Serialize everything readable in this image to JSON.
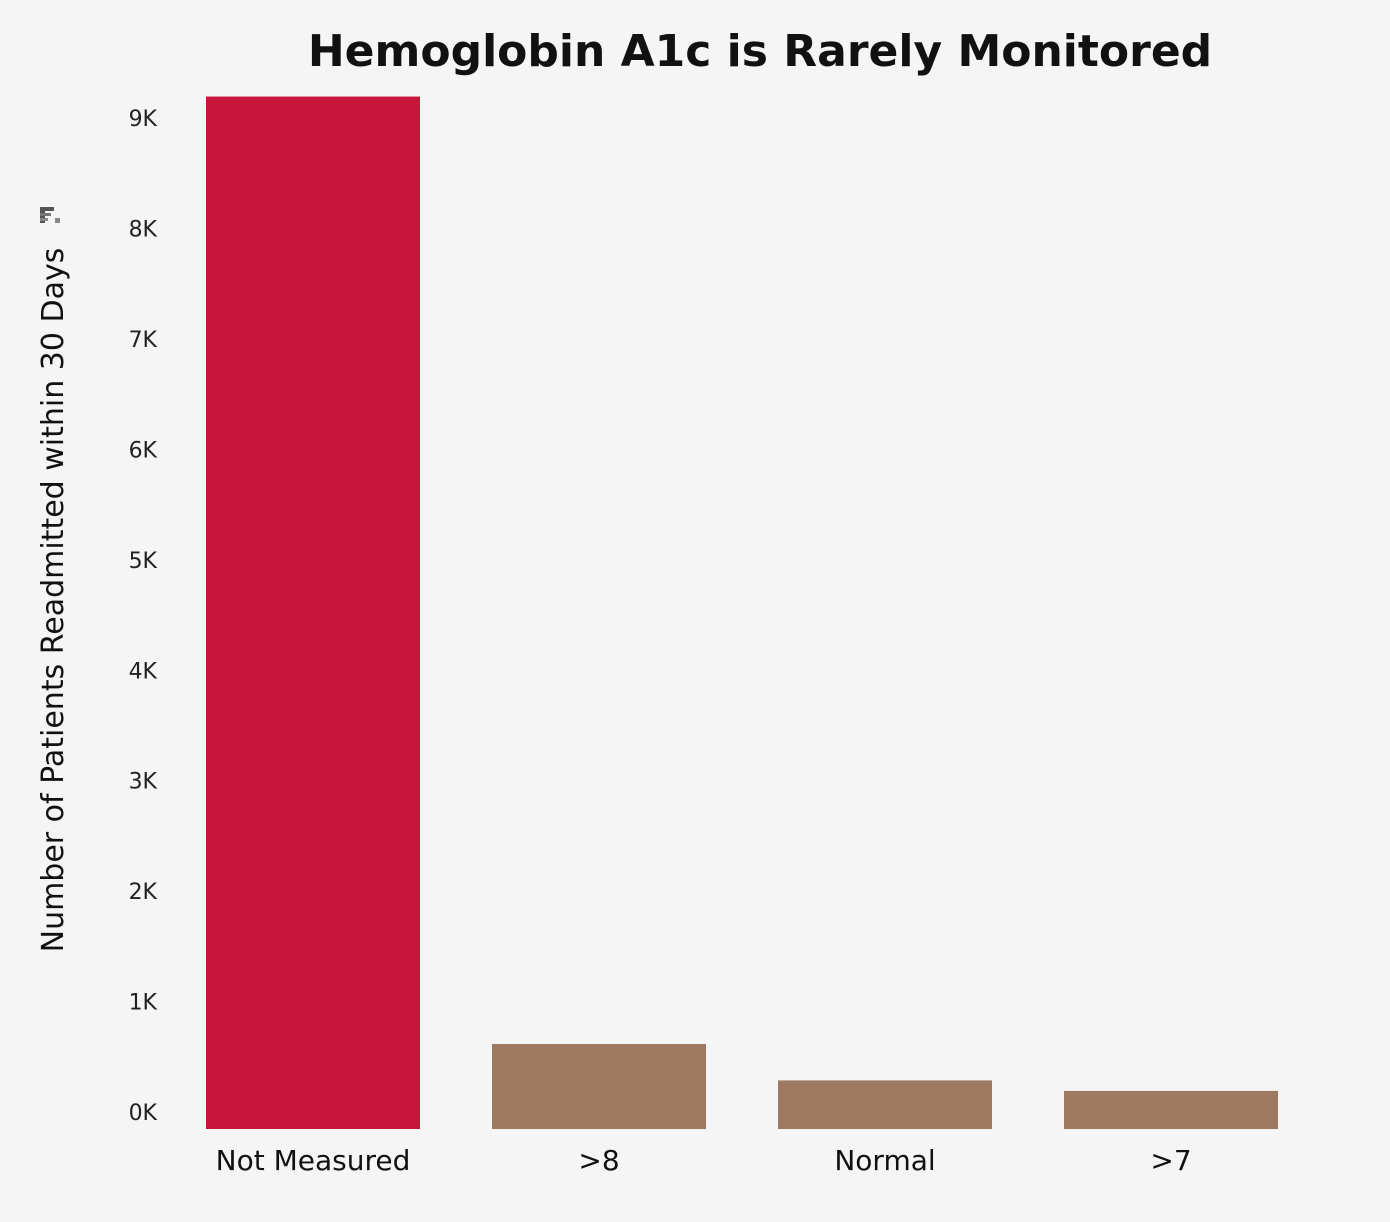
{
  "chart_data": {
    "type": "bar",
    "title": "Hemoglobin A1c is Rarely Monitored",
    "xlabel": "",
    "ylabel": "Number of Patients Readmitted within 30 Days",
    "categories": [
      "Not Measured",
      ">8",
      "Normal",
      ">7"
    ],
    "values": [
      9350,
      770,
      440,
      345
    ],
    "ylim": [
      0,
      9500
    ],
    "yticks": [
      0,
      1000,
      2000,
      3000,
      4000,
      5000,
      6000,
      7000,
      8000,
      9000
    ],
    "ytick_labels": [
      "0K",
      "1K",
      "2K",
      "3K",
      "4K",
      "5K",
      "6K",
      "7K",
      "8K",
      "9K"
    ],
    "bar_colors": [
      "#c8153a",
      "#9e7962",
      "#9e7962",
      "#9e7962"
    ],
    "grid": false,
    "sort_icon": "sort-descending-icon"
  }
}
